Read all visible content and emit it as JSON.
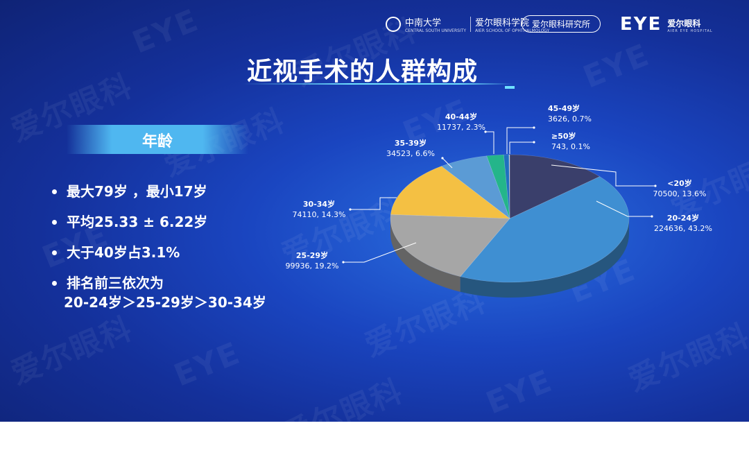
{
  "header": {
    "university_name": "中南大学",
    "university_sub": "CENTRAL SOUTH UNIVERSITY",
    "college_name": "爱尔眼科学院",
    "college_sub": "AIER SCHOOL OF OPHTHALMOLOGY",
    "institute": "爱尔眼科研究所",
    "brand_mark": "EYE",
    "brand_cn": "爱尔眼科",
    "brand_en": "AIER EYE HOSPITAL"
  },
  "title": "近视手术的人群构成",
  "section_label": "年龄",
  "bullets": [
    "最大79岁 ，最小17岁",
    "平均25.33 ± 6.22岁",
    "大于40岁占3.1%",
    "排名前三依次为"
  ],
  "ranking_line": "20-24岁＞25-29岁＞30-34岁",
  "watermark": {
    "cn": "爱尔眼科",
    "mark": "EYE"
  },
  "colors": {
    "accent": "#4fb7f0",
    "line_accent": "#6fe0ff"
  },
  "chart_data": {
    "type": "pie",
    "style": "3d",
    "slices": [
      {
        "label": "<20岁",
        "count": "70500",
        "percent": "13.6%",
        "value": 13.6,
        "color": "#3a3f6b"
      },
      {
        "label": "20-24岁",
        "count": "224636",
        "percent": "43.2%",
        "value": 43.2,
        "color": "#3f8fd2"
      },
      {
        "label": "25-29岁",
        "count": "99936",
        "percent": "19.2%",
        "value": 19.2,
        "color": "#a6a6a6"
      },
      {
        "label": "30-34岁",
        "count": "74110",
        "percent": "14.3%",
        "value": 14.3,
        "color": "#f4c043"
      },
      {
        "label": "35-39岁",
        "count": "34523",
        "percent": "6.6%",
        "value": 6.6,
        "color": "#5b9bd5"
      },
      {
        "label": "40-44岁",
        "count": "11737",
        "percent": "2.3%",
        "value": 2.3,
        "color": "#24b58a"
      },
      {
        "label": "45-49岁",
        "count": "3626",
        "percent": "0.7%",
        "value": 0.7,
        "color": "#1f6fbf"
      },
      {
        "label": "≥50岁",
        "count": "743",
        "percent": "0.1%",
        "value": 0.1,
        "color": "#c9d2dc"
      }
    ]
  }
}
